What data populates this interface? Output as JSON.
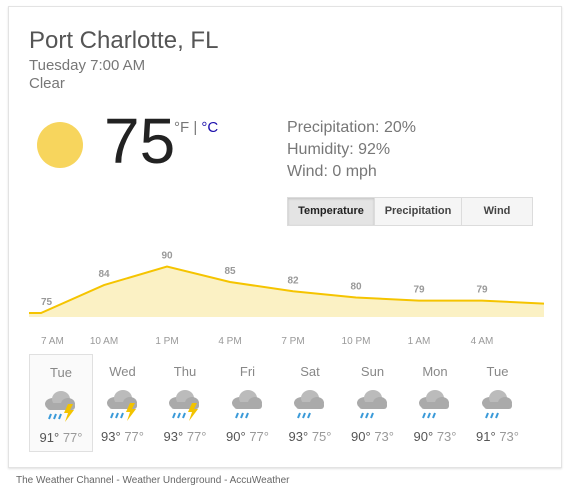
{
  "current": {
    "city": "Port Charlotte, FL",
    "datetime": "Tuesday 7:00 AM",
    "condition": "Clear",
    "temp": "75",
    "unit_f": "°F",
    "unit_sep": " | ",
    "unit_c": "°C",
    "condition_icon": "sun-icon"
  },
  "stats": {
    "precipitation": "Precipitation: 20%",
    "humidity": "Humidity: 92%",
    "wind": "Wind: 0 mph"
  },
  "tabs": [
    {
      "label": "Temperature",
      "active": true
    },
    {
      "label": "Precipitation",
      "active": false
    },
    {
      "label": "Wind",
      "active": false
    }
  ],
  "chart_data": {
    "type": "area",
    "x": [
      "7 AM",
      "10 AM",
      "1 PM",
      "4 PM",
      "7 PM",
      "10 PM",
      "1 AM",
      "4 AM"
    ],
    "series": [
      {
        "values": [
          75,
          84,
          90,
          85,
          82,
          80,
          79,
          79
        ]
      }
    ],
    "color": "#f5c400",
    "fill": "#fbf1c4"
  },
  "forecast": [
    {
      "day": "Tue",
      "hi": "91°",
      "lo": "77°",
      "icon": "thunderstorm-icon",
      "selected": true
    },
    {
      "day": "Wed",
      "hi": "93°",
      "lo": "77°",
      "icon": "thunderstorm-icon"
    },
    {
      "day": "Thu",
      "hi": "93°",
      "lo": "77°",
      "icon": "thunderstorm-icon"
    },
    {
      "day": "Fri",
      "hi": "90°",
      "lo": "77°",
      "icon": "rain-showers-icon"
    },
    {
      "day": "Sat",
      "hi": "93°",
      "lo": "75°",
      "icon": "rain-showers-icon"
    },
    {
      "day": "Sun",
      "hi": "90°",
      "lo": "73°",
      "icon": "rain-showers-icon"
    },
    {
      "day": "Mon",
      "hi": "90°",
      "lo": "73°",
      "icon": "rain-showers-icon"
    },
    {
      "day": "Tue",
      "hi": "91°",
      "lo": "73°",
      "icon": "rain-showers-icon"
    }
  ],
  "footer": "The Weather Channel - Weather Underground - AccuWeather"
}
